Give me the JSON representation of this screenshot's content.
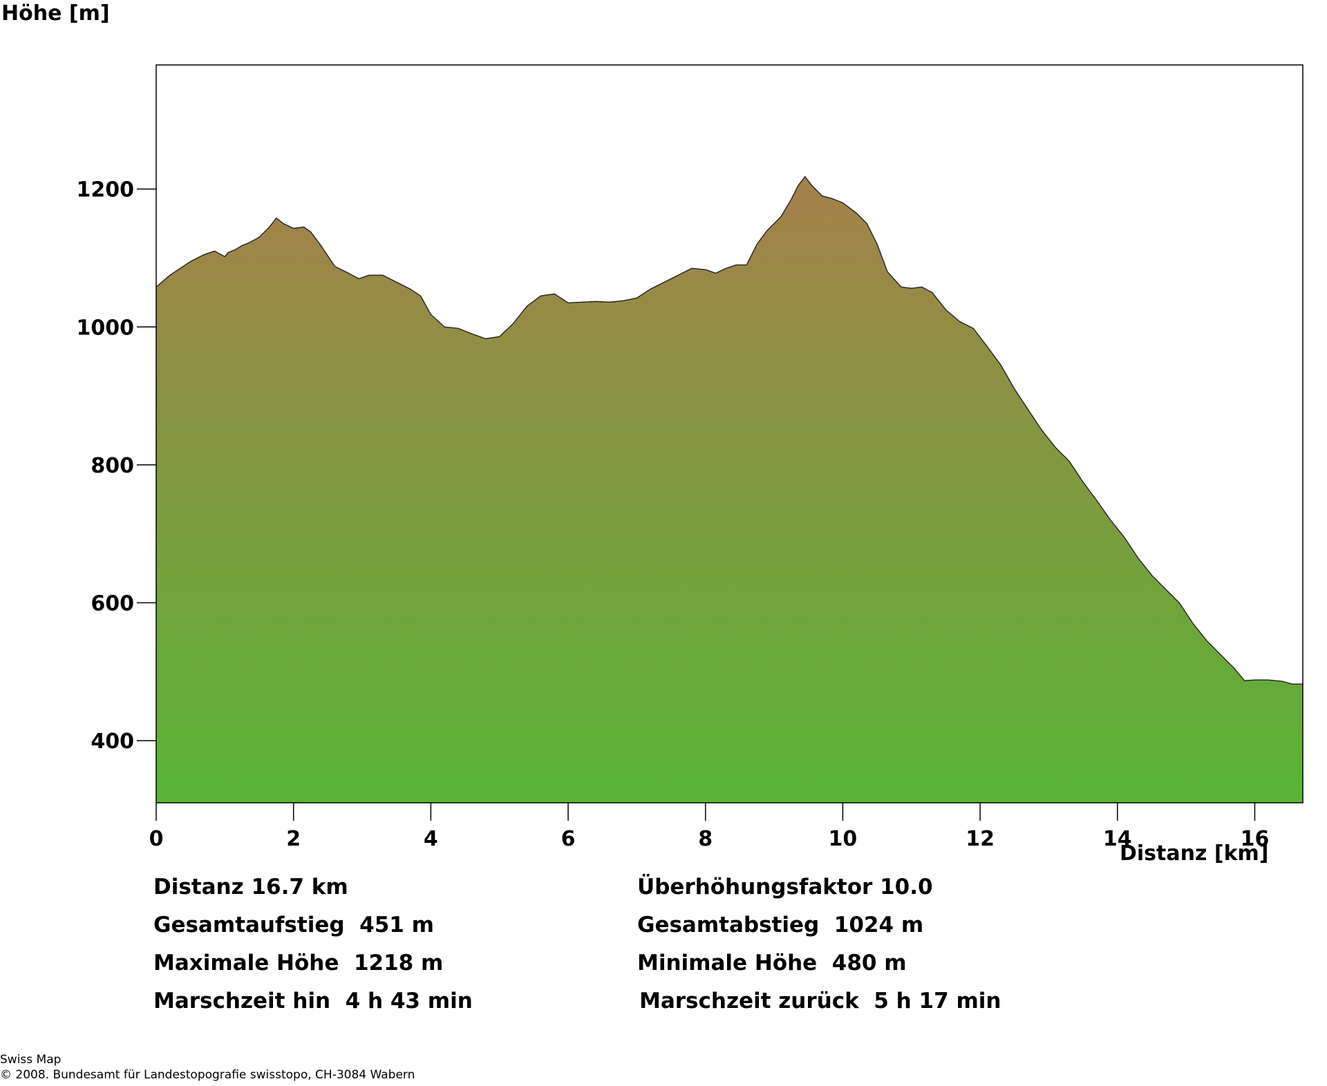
{
  "chart_data": {
    "type": "area",
    "ylabel": "Höhe [m]",
    "xlabel": "Distanz [km]",
    "xlim": [
      0,
      16.7
    ],
    "ylim": [
      310,
      1380
    ],
    "xticks": [
      0,
      2,
      4,
      6,
      8,
      10,
      12,
      14,
      16
    ],
    "yticks": [
      400,
      600,
      800,
      1000,
      1200
    ],
    "grid": false,
    "fill_gradient": {
      "top": "#a5804a",
      "bottom": "#58b535"
    },
    "x": [
      0,
      0.2,
      0.35,
      0.5,
      0.7,
      0.85,
      1.0,
      1.05,
      1.15,
      1.25,
      1.35,
      1.5,
      1.65,
      1.75,
      1.85,
      2.0,
      2.15,
      2.25,
      2.4,
      2.6,
      2.8,
      2.95,
      3.1,
      3.3,
      3.5,
      3.7,
      3.85,
      4.0,
      4.2,
      4.4,
      4.6,
      4.8,
      5.0,
      5.2,
      5.4,
      5.6,
      5.8,
      6.0,
      6.2,
      6.4,
      6.6,
      6.8,
      7.0,
      7.2,
      7.4,
      7.6,
      7.8,
      8.0,
      8.15,
      8.3,
      8.45,
      8.6,
      8.75,
      8.9,
      9.1,
      9.25,
      9.35,
      9.45,
      9.55,
      9.7,
      9.85,
      10.0,
      10.2,
      10.35,
      10.5,
      10.65,
      10.85,
      11.0,
      11.15,
      11.3,
      11.5,
      11.7,
      11.9,
      12.1,
      12.3,
      12.5,
      12.7,
      12.9,
      13.1,
      13.3,
      13.5,
      13.7,
      13.9,
      14.1,
      14.3,
      14.5,
      14.7,
      14.9,
      15.1,
      15.3,
      15.5,
      15.7,
      15.85,
      16.0,
      16.2,
      16.4,
      16.55,
      16.7
    ],
    "y": [
      1058,
      1075,
      1085,
      1095,
      1105,
      1110,
      1102,
      1108,
      1112,
      1118,
      1122,
      1130,
      1145,
      1158,
      1150,
      1143,
      1145,
      1138,
      1118,
      1088,
      1078,
      1070,
      1075,
      1075,
      1065,
      1055,
      1045,
      1018,
      1000,
      998,
      990,
      983,
      986,
      1005,
      1030,
      1045,
      1048,
      1035,
      1036,
      1037,
      1036,
      1038,
      1042,
      1055,
      1065,
      1075,
      1085,
      1083,
      1078,
      1085,
      1090,
      1090,
      1120,
      1140,
      1160,
      1185,
      1205,
      1218,
      1205,
      1190,
      1186,
      1180,
      1165,
      1150,
      1120,
      1080,
      1058,
      1056,
      1058,
      1050,
      1025,
      1008,
      998,
      972,
      945,
      910,
      880,
      850,
      825,
      805,
      775,
      748,
      720,
      695,
      665,
      640,
      620,
      600,
      570,
      545,
      525,
      505,
      487,
      488,
      488,
      486,
      482,
      482
    ]
  },
  "stats": {
    "distanz": "Distanz 16.7 km",
    "faktor": "Überhöhungsfaktor 10.0",
    "aufstieg": "Gesamtaufstieg  451 m",
    "abstieg": "Gesamtabstieg  1024 m",
    "max_hoehe": "Maximale Höhe  1218 m",
    "min_hoehe": "Minimale Höhe  480 m",
    "zeit_hin": "Marschzeit hin  4 h 43 min",
    "zeit_zurueck": "Marschzeit zurück  5 h 17 min"
  },
  "footer": {
    "line1": "Swiss Map",
    "line2": "© 2008. Bundesamt für Landestopografie swisstopo, CH-3084 Wabern"
  }
}
